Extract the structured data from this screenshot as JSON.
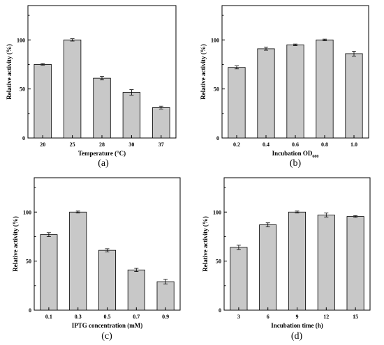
{
  "chart_data": [
    {
      "type": "bar",
      "panel_label": "(a)",
      "categories": [
        "20",
        "25",
        "28",
        "30",
        "37"
      ],
      "values": [
        75,
        100,
        61,
        46.5,
        31
      ],
      "errors": [
        0.8,
        1.2,
        1.8,
        2.8,
        1.5
      ],
      "xlabel": "Temperature  (°C)",
      "ylabel": "Relative activity (%)",
      "ylim": [
        0,
        135
      ],
      "yticks": [
        0,
        50,
        100
      ]
    },
    {
      "type": "bar",
      "panel_label": "(b)",
      "categories": [
        "0.2",
        "0.4",
        "0.6",
        "0.8",
        "1.0"
      ],
      "values": [
        72,
        91,
        95,
        100,
        86
      ],
      "errors": [
        1.5,
        1.5,
        0.8,
        0.8,
        2.5
      ],
      "xlabel": "Incubation OD",
      "xlabel_sub": "600",
      "ylabel": "Relative activity (%)",
      "ylim": [
        0,
        135
      ],
      "yticks": [
        0,
        50,
        100
      ]
    },
    {
      "type": "bar",
      "panel_label": "(c)",
      "categories": [
        "0.1",
        "0.3",
        "0.5",
        "0.7",
        "0.9"
      ],
      "values": [
        77,
        100,
        61,
        41,
        29
      ],
      "errors": [
        2.0,
        1.0,
        1.6,
        1.6,
        2.4
      ],
      "xlabel": "IPTG concentration (mM)",
      "ylabel": "Relative activity (%)",
      "ylim": [
        0,
        135
      ],
      "yticks": [
        0,
        50,
        100
      ]
    },
    {
      "type": "bar",
      "panel_label": "(d)",
      "categories": [
        "3",
        "6",
        "9",
        "12",
        "15"
      ],
      "values": [
        64,
        87,
        100,
        97,
        95.5
      ],
      "errors": [
        2.2,
        2.0,
        1.0,
        2.0,
        0.8
      ],
      "xlabel": "Incubation time (h)",
      "ylabel": "Relative activity (%)",
      "ylim": [
        0,
        135
      ],
      "yticks": [
        0,
        50,
        100
      ]
    }
  ]
}
